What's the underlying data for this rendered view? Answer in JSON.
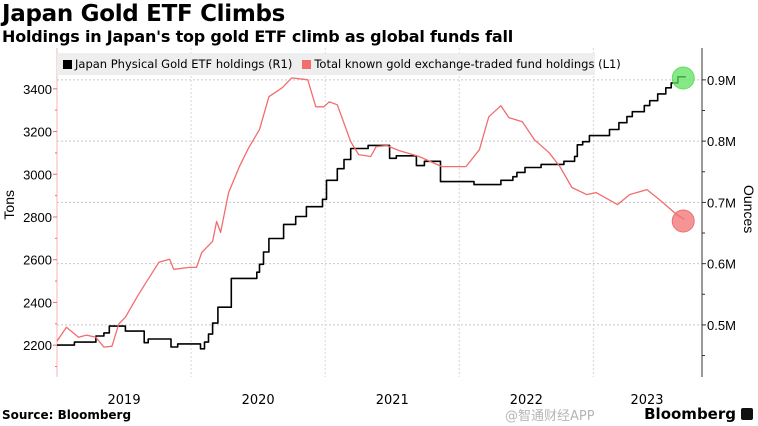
{
  "header": {
    "title": "Japan Gold ETF Climbs",
    "subtitle": "Holdings in Japan's top gold ETF climb as global funds fall"
  },
  "footer": {
    "source": "Source: Bloomberg",
    "brand": "Bloomberg",
    "watermark": "@智通财经APP"
  },
  "colors": {
    "black_series": "#000000",
    "red_series": "#f26d6d",
    "green_marker": "#5fe05f",
    "red_marker": "#f07070",
    "legend_bg": "#eeeeee"
  },
  "chart_data": {
    "type": "line",
    "title": "Japan Gold ETF Climbs",
    "subtitle": "Holdings in Japan's top gold ETF climb as global funds fall",
    "xlabel": "",
    "ylabel_left": "Tons",
    "ylabel_right": "Ounces",
    "xlim": [
      2019.0,
      2023.81
    ],
    "ylim_left": [
      2051,
      3591
    ],
    "ylim_right": [
      0.415,
      0.952
    ],
    "x_ticks": [
      {
        "label": "2019",
        "at": 2019.5
      },
      {
        "label": "2020",
        "at": 2020.5
      },
      {
        "label": "2021",
        "at": 2021.5
      },
      {
        "label": "2022",
        "at": 2022.5
      },
      {
        "label": "2023",
        "at": 2023.4
      }
    ],
    "x_gridlines": [
      2020,
      2021,
      2022,
      2023
    ],
    "left_ticks": [
      {
        "v": 3400,
        "label": "3400"
      },
      {
        "v": 3200,
        "label": "3200"
      },
      {
        "v": 3000,
        "label": "3000"
      },
      {
        "v": 2800,
        "label": "2800"
      },
      {
        "v": 2600,
        "label": "2600"
      },
      {
        "v": 2400,
        "label": "2400"
      },
      {
        "v": 2200,
        "label": "2200"
      }
    ],
    "right_ticks": [
      {
        "v": 0.9,
        "label": "0.9M"
      },
      {
        "v": 0.8,
        "label": "0.8M"
      },
      {
        "v": 0.7,
        "label": "0.7M"
      },
      {
        "v": 0.6,
        "label": "0.6M"
      },
      {
        "v": 0.5,
        "label": "0.5M"
      }
    ],
    "legend_position": "top",
    "series": [
      {
        "name": "Japan Physical Gold ETF holdings (R1)",
        "axis": "right",
        "unit": "M ounces",
        "step": true,
        "color": "#000000",
        "points": [
          [
            2019.0,
            0.467
          ],
          [
            2019.13,
            0.472
          ],
          [
            2019.29,
            0.482
          ],
          [
            2019.35,
            0.487
          ],
          [
            2019.39,
            0.498
          ],
          [
            2019.51,
            0.49
          ],
          [
            2019.65,
            0.471
          ],
          [
            2019.68,
            0.477
          ],
          [
            2019.85,
            0.464
          ],
          [
            2019.9,
            0.469
          ],
          [
            2020.07,
            0.461
          ],
          [
            2020.1,
            0.472
          ],
          [
            2020.13,
            0.485
          ],
          [
            2020.16,
            0.503
          ],
          [
            2020.2,
            0.529
          ],
          [
            2020.3,
            0.576
          ],
          [
            2020.49,
            0.586
          ],
          [
            2020.51,
            0.599
          ],
          [
            2020.54,
            0.619
          ],
          [
            2020.58,
            0.641
          ],
          [
            2020.69,
            0.664
          ],
          [
            2020.78,
            0.677
          ],
          [
            2020.86,
            0.693
          ],
          [
            2020.98,
            0.705
          ],
          [
            2021.01,
            0.736
          ],
          [
            2021.09,
            0.755
          ],
          [
            2021.14,
            0.77
          ],
          [
            2021.19,
            0.788
          ],
          [
            2021.32,
            0.793
          ],
          [
            2021.48,
            0.772
          ],
          [
            2021.53,
            0.776
          ],
          [
            2021.68,
            0.76
          ],
          [
            2021.74,
            0.767
          ],
          [
            2021.86,
            0.734
          ],
          [
            2022.11,
            0.729
          ],
          [
            2022.31,
            0.736
          ],
          [
            2022.4,
            0.742
          ],
          [
            2022.43,
            0.749
          ],
          [
            2022.49,
            0.757
          ],
          [
            2022.61,
            0.762
          ],
          [
            2022.78,
            0.767
          ],
          [
            2022.86,
            0.775
          ],
          [
            2022.88,
            0.794
          ],
          [
            2022.92,
            0.799
          ],
          [
            2022.97,
            0.809
          ],
          [
            2023.12,
            0.819
          ],
          [
            2023.19,
            0.83
          ],
          [
            2023.25,
            0.84
          ],
          [
            2023.29,
            0.848
          ],
          [
            2023.38,
            0.858
          ],
          [
            2023.42,
            0.866
          ],
          [
            2023.48,
            0.877
          ],
          [
            2023.54,
            0.887
          ],
          [
            2023.58,
            0.895
          ],
          [
            2023.63,
            0.905
          ],
          [
            2023.69,
            0.905
          ]
        ]
      },
      {
        "name": "Total known gold exchange-traded fund holdings (L1)",
        "axis": "left",
        "unit": "tons",
        "step": false,
        "color": "#f26d6d",
        "points": [
          [
            2019.0,
            2219
          ],
          [
            2019.07,
            2284
          ],
          [
            2019.16,
            2237
          ],
          [
            2019.22,
            2247
          ],
          [
            2019.29,
            2237
          ],
          [
            2019.35,
            2191
          ],
          [
            2019.41,
            2195
          ],
          [
            2019.46,
            2298
          ],
          [
            2019.51,
            2331
          ],
          [
            2019.6,
            2429
          ],
          [
            2019.67,
            2499
          ],
          [
            2019.76,
            2588
          ],
          [
            2019.84,
            2602
          ],
          [
            2019.87,
            2555
          ],
          [
            2019.99,
            2564
          ],
          [
            2020.04,
            2564
          ],
          [
            2020.08,
            2634
          ],
          [
            2020.16,
            2686
          ],
          [
            2020.19,
            2779
          ],
          [
            2020.22,
            2728
          ],
          [
            2020.28,
            2914
          ],
          [
            2020.36,
            3036
          ],
          [
            2020.43,
            3125
          ],
          [
            2020.51,
            3209
          ],
          [
            2020.58,
            3363
          ],
          [
            2020.68,
            3405
          ],
          [
            2020.75,
            3451
          ],
          [
            2020.87,
            3442
          ],
          [
            2020.93,
            3316
          ],
          [
            2020.99,
            3316
          ],
          [
            2021.03,
            3339
          ],
          [
            2021.09,
            3325
          ],
          [
            2021.19,
            3153
          ],
          [
            2021.25,
            3092
          ],
          [
            2021.34,
            3083
          ],
          [
            2021.38,
            3129
          ],
          [
            2021.46,
            3134
          ],
          [
            2021.55,
            3111
          ],
          [
            2021.7,
            3083
          ],
          [
            2021.87,
            3036
          ],
          [
            2021.98,
            3036
          ],
          [
            2022.05,
            3036
          ],
          [
            2022.15,
            3115
          ],
          [
            2022.22,
            3269
          ],
          [
            2022.31,
            3321
          ],
          [
            2022.37,
            3265
          ],
          [
            2022.47,
            3246
          ],
          [
            2022.56,
            3162
          ],
          [
            2022.67,
            3101
          ],
          [
            2022.75,
            3036
          ],
          [
            2022.84,
            2938
          ],
          [
            2022.95,
            2905
          ],
          [
            2023.02,
            2914
          ],
          [
            2023.18,
            2858
          ],
          [
            2023.27,
            2905
          ],
          [
            2023.4,
            2928
          ],
          [
            2023.51,
            2872
          ],
          [
            2023.62,
            2812
          ],
          [
            2023.68,
            2788
          ]
        ]
      }
    ],
    "annotations": [
      {
        "type": "circle-marker",
        "series": 0,
        "at": [
          2023.67,
          0.903
        ],
        "color": "#5fe05f"
      },
      {
        "type": "circle-marker",
        "series": 1,
        "at": [
          2023.67,
          2781
        ],
        "color": "#f07070"
      }
    ]
  }
}
